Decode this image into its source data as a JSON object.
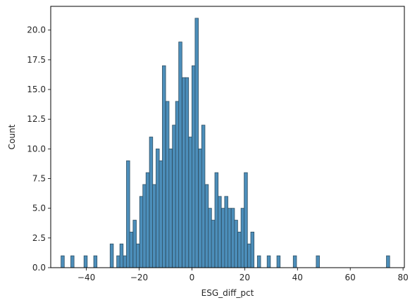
{
  "chart_data": {
    "type": "bar",
    "subtype": "histogram",
    "xlabel": "ESG_diff_pct",
    "ylabel": "Count",
    "xlim": [
      -53.5,
      80.5
    ],
    "ylim": [
      0,
      22
    ],
    "xticks": [
      -40,
      -20,
      0,
      20,
      40,
      60,
      80
    ],
    "yticks": [
      0.0,
      2.5,
      5.0,
      7.5,
      10.0,
      12.5,
      15.0,
      17.5,
      20.0
    ],
    "xtick_labels": [
      "−40",
      "−20",
      "0",
      "20",
      "40",
      "60",
      "80"
    ],
    "ytick_labels": [
      "0.0",
      "2.5",
      "5.0",
      "7.5",
      "10.0",
      "12.5",
      "15.0",
      "17.5",
      "20.0"
    ],
    "grid": false,
    "bar_color": "#4c8eba",
    "edge_color": "#2f4f63",
    "bin_width": 1.24,
    "bins": [
      {
        "x": -49.6,
        "count": 1
      },
      {
        "x": -45.9,
        "count": 1
      },
      {
        "x": -40.9,
        "count": 1
      },
      {
        "x": -37.2,
        "count": 1
      },
      {
        "x": -31.0,
        "count": 2
      },
      {
        "x": -28.5,
        "count": 1
      },
      {
        "x": -27.3,
        "count": 2
      },
      {
        "x": -26.0,
        "count": 1
      },
      {
        "x": -24.8,
        "count": 9
      },
      {
        "x": -23.6,
        "count": 3
      },
      {
        "x": -22.3,
        "count": 4
      },
      {
        "x": -21.1,
        "count": 2
      },
      {
        "x": -19.8,
        "count": 6
      },
      {
        "x": -18.6,
        "count": 7
      },
      {
        "x": -17.4,
        "count": 8
      },
      {
        "x": -16.1,
        "count": 11
      },
      {
        "x": -14.9,
        "count": 7
      },
      {
        "x": -13.6,
        "count": 10
      },
      {
        "x": -12.4,
        "count": 9
      },
      {
        "x": -11.2,
        "count": 17
      },
      {
        "x": -9.9,
        "count": 14
      },
      {
        "x": -8.7,
        "count": 10
      },
      {
        "x": -7.4,
        "count": 12
      },
      {
        "x": -6.2,
        "count": 14
      },
      {
        "x": -5.0,
        "count": 19
      },
      {
        "x": -3.7,
        "count": 16
      },
      {
        "x": -2.5,
        "count": 16
      },
      {
        "x": -1.2,
        "count": 11
      },
      {
        "x": 0.0,
        "count": 17
      },
      {
        "x": 1.2,
        "count": 21
      },
      {
        "x": 2.5,
        "count": 10
      },
      {
        "x": 3.7,
        "count": 12
      },
      {
        "x": 5.0,
        "count": 7
      },
      {
        "x": 6.2,
        "count": 5
      },
      {
        "x": 7.4,
        "count": 4
      },
      {
        "x": 8.7,
        "count": 8
      },
      {
        "x": 9.9,
        "count": 6
      },
      {
        "x": 11.2,
        "count": 5
      },
      {
        "x": 12.4,
        "count": 6
      },
      {
        "x": 13.6,
        "count": 5
      },
      {
        "x": 14.9,
        "count": 5
      },
      {
        "x": 16.1,
        "count": 4
      },
      {
        "x": 17.4,
        "count": 3
      },
      {
        "x": 18.6,
        "count": 5
      },
      {
        "x": 19.8,
        "count": 8
      },
      {
        "x": 21.1,
        "count": 2
      },
      {
        "x": 22.3,
        "count": 3
      },
      {
        "x": 24.8,
        "count": 1
      },
      {
        "x": 28.5,
        "count": 1
      },
      {
        "x": 32.2,
        "count": 1
      },
      {
        "x": 38.4,
        "count": 1
      },
      {
        "x": 47.1,
        "count": 1
      },
      {
        "x": 73.7,
        "count": 1
      }
    ]
  }
}
